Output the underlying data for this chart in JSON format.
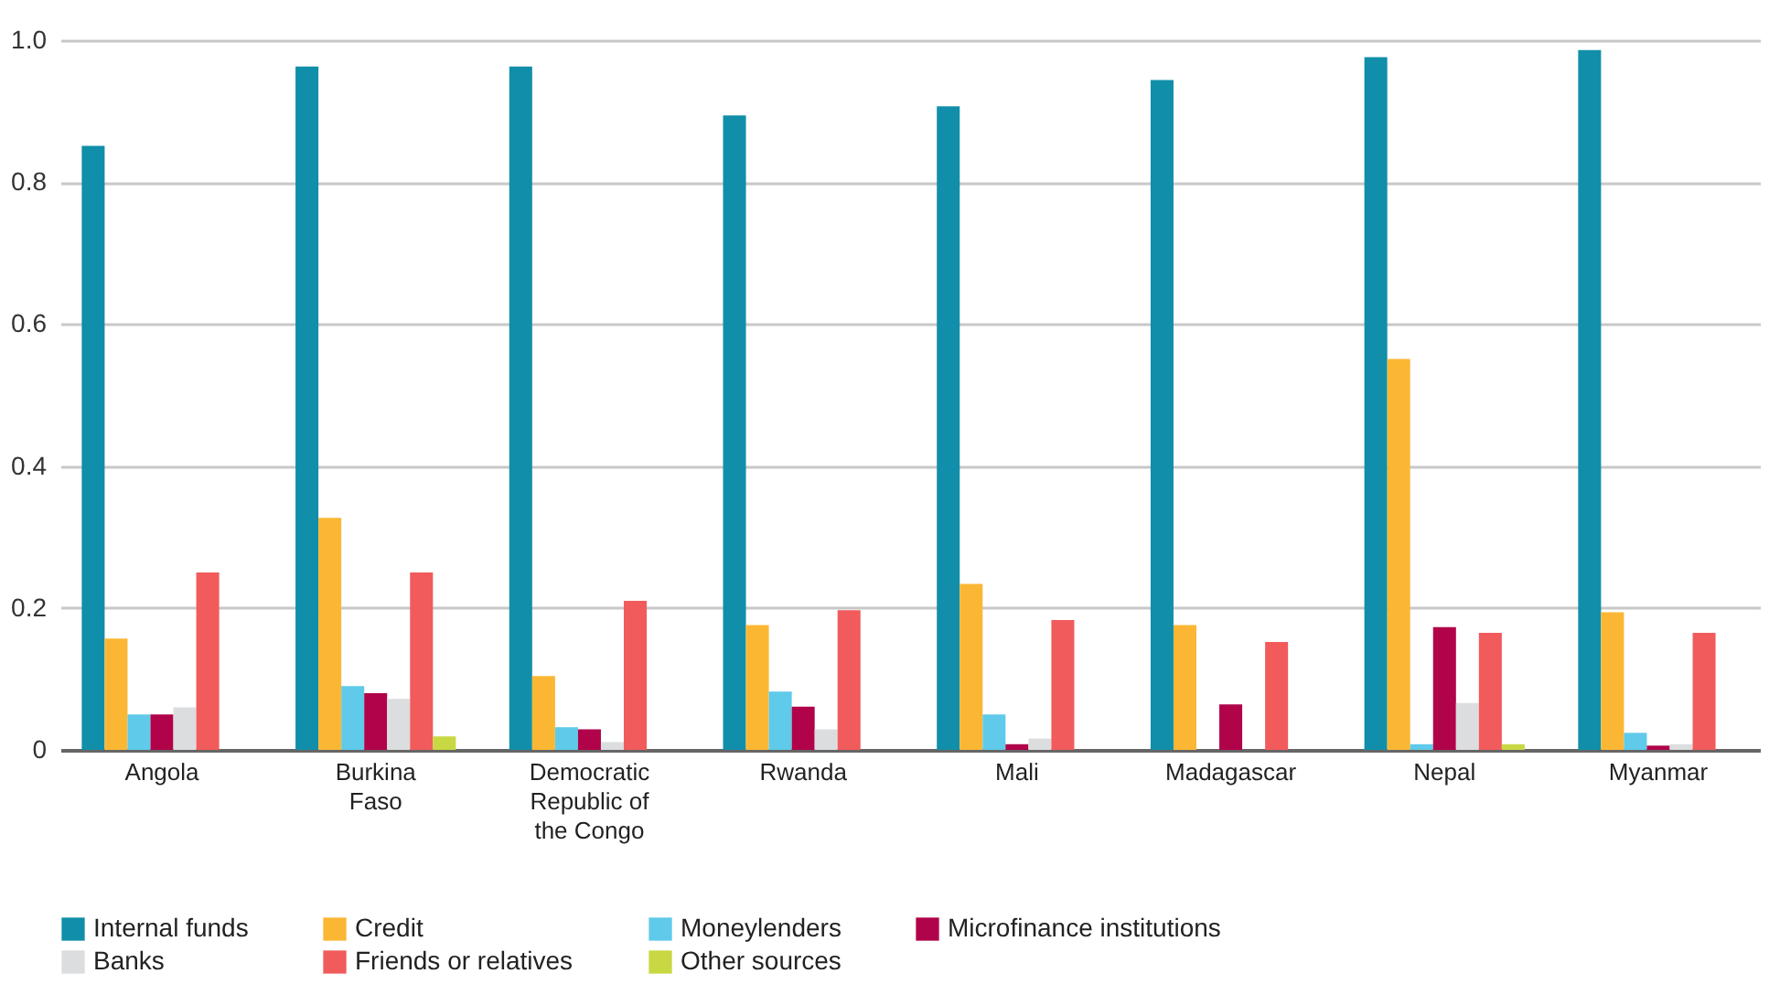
{
  "chart_data": {
    "type": "bar",
    "categories": [
      "Angola",
      "Burkina Faso",
      "Democratic Republic of the Congo",
      "Rwanda",
      "Mali",
      "Madagascar",
      "Nepal",
      "Myanmar"
    ],
    "series": [
      {
        "name": "Internal funds",
        "color": "#118ea9",
        "values": [
          0.851,
          0.963,
          0.963,
          0.894,
          0.907,
          0.944,
          0.976,
          0.986
        ]
      },
      {
        "name": "Credit",
        "color": "#fbb734",
        "values": [
          0.157,
          0.327,
          0.104,
          0.176,
          0.234,
          0.176,
          0.551,
          0.194
        ]
      },
      {
        "name": "Moneylenders",
        "color": "#5fcae9",
        "values": [
          0.05,
          0.09,
          0.032,
          0.082,
          0.05,
          0,
          0.008,
          0.024
        ]
      },
      {
        "name": "Microfinance institutions",
        "color": "#b0034a",
        "values": [
          0.05,
          0.08,
          0.029,
          0.061,
          0.008,
          0.064,
          0.173,
          0.006
        ]
      },
      {
        "name": "Banks",
        "color": "#dcdddf",
        "values": [
          0.06,
          0.072,
          0.011,
          0.029,
          0.016,
          0,
          0.066,
          0.008
        ]
      },
      {
        "name": "Friends or relatives",
        "color": "#f15b5b",
        "values": [
          0.25,
          0.25,
          0.21,
          0.197,
          0.183,
          0.152,
          0.165,
          0.165
        ]
      },
      {
        "name": "Other sources",
        "color": "#c8d842",
        "values": [
          0,
          0.019,
          0,
          0,
          0,
          0,
          0.008,
          0
        ]
      }
    ],
    "ylim": [
      0,
      1
    ],
    "yticks": [
      0,
      0.2,
      0.4,
      0.6,
      0.8,
      {
        "value": 1,
        "label": "1.0"
      }
    ],
    "grid": "y",
    "legend": "bottom"
  }
}
